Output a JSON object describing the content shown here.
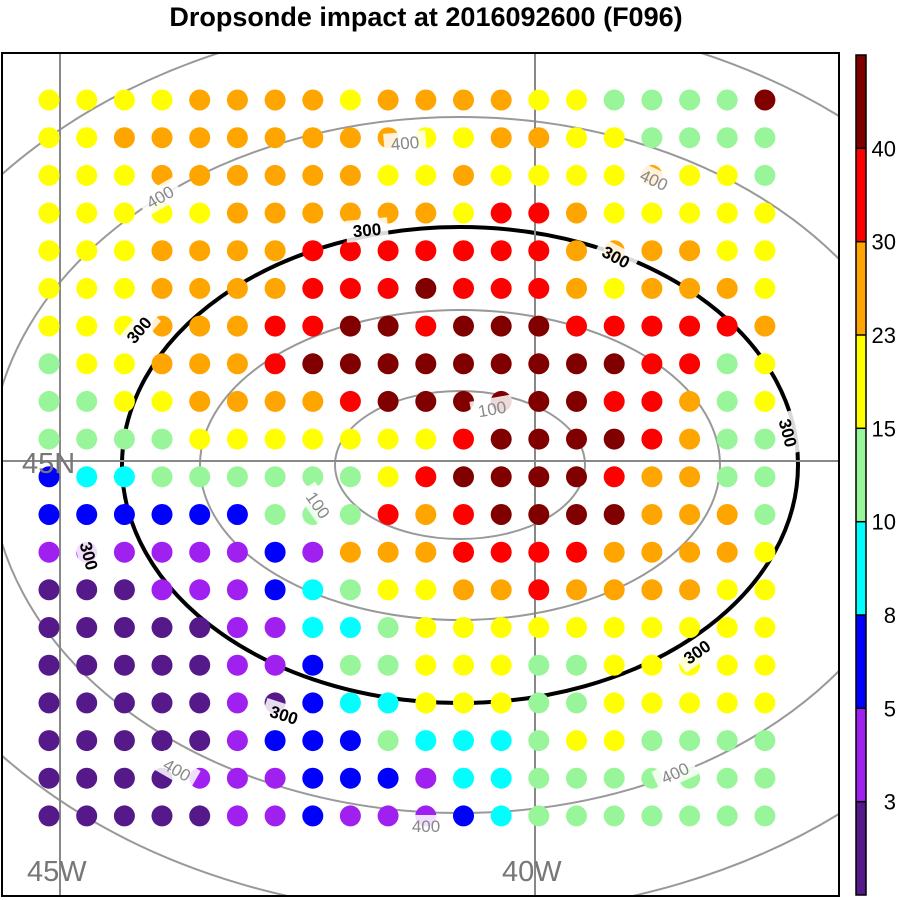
{
  "chart_data": {
    "type": "heatmap",
    "title": "Dropsonde impact at 2016092600 (F096)",
    "grid_rows": [
      "22223333233332211115",
      "22333333332233221111",
      "22233333322322223221",
      "22222333333244322222",
      "22233334444444333322",
      "22233334445444323332",
      "22233344554555444443",
      "12233345555555554412",
      "11223333455555544312",
      "11112222222455554311",
      "76611111124555543311",
      "77777711143455553331",
      "88888878333444433332",
      "99988876122334333322",
      "99999886612222222222",
      "99999887112221122222",
      "99999897662221122222",
      "99999877716661221111",
      "99998887778661111111",
      "99999887888761111111"
    ],
    "palette": {
      "1": "#99f599",
      "2": "#ffff00",
      "3": "#ffa500",
      "4": "#ff0000",
      "5": "#800000",
      "6": "#00ffff",
      "7": "#0000ff",
      "8": "#a020f0",
      "9": "#55198a"
    },
    "colorbar": {
      "labels": [
        "3",
        "5",
        "8",
        "10",
        "15",
        "23",
        "30",
        "40"
      ],
      "colors": [
        "#55198a",
        "#a020f0",
        "#0000ff",
        "#00ffff",
        "#99f599",
        "#ffff00",
        "#ffa500",
        "#ff0000",
        "#800000"
      ]
    },
    "contours": [
      {
        "value": 100,
        "label": "100",
        "color": "#999999"
      },
      {
        "value": 200,
        "label": "",
        "color": "#999999"
      },
      {
        "value": 300,
        "label": "300",
        "color": "#000000"
      },
      {
        "value": 400,
        "label": "400",
        "color": "#999999"
      },
      {
        "value": 500,
        "label": "",
        "color": "#999999"
      }
    ],
    "lon_labels": [
      "45W",
      "40W"
    ],
    "lat_labels": [
      "45N"
    ]
  }
}
